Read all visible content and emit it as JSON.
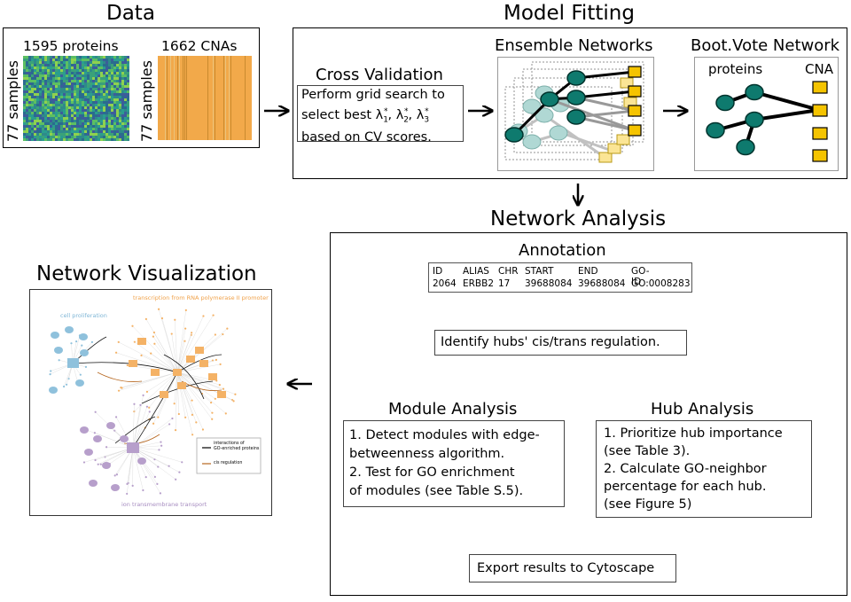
{
  "data_section": {
    "title": "Data",
    "proteins_label": "1595 proteins",
    "cnas_label": "1662 CNAs",
    "samples_label_1": "77 samples",
    "samples_label_2": "77 samples"
  },
  "model_fitting": {
    "title": "Model Fitting",
    "cv_title": "Cross Validation",
    "cv_line1": "Perform grid search to",
    "cv_line2_prefix": "select best λ",
    "cv_line3": "based on CV scores.",
    "ensemble_title": "Ensemble Networks",
    "bootvote_title": "Boot.Vote Network",
    "proteins_label": "proteins",
    "cna_label": "CNA"
  },
  "network_analysis": {
    "title": "Network Analysis",
    "annotation_title": "Annotation",
    "table_headers": [
      "ID",
      "ALIAS",
      "CHR",
      "START",
      "END",
      "GO-ID"
    ],
    "table_row": [
      "2064",
      "ERBB2",
      "17",
      "39688084",
      "39688084",
      "GO:0008283"
    ],
    "identify_text": "Identify hubs' cis/trans regulation.",
    "module_title": "Module Analysis",
    "module_lines": [
      "1. Detect modules with edge-",
      "betweenness algorithm.",
      "2. Test for GO enrichment",
      "of modules (see Table S.5)."
    ],
    "hub_title": "Hub Analysis",
    "hub_lines": [
      "1. Prioritize hub importance",
      "(see Table 3).",
      "2. Calculate GO-neighbor",
      "percentage for each hub.",
      "(see Figure 5)"
    ],
    "export_text": "Export results to Cytoscape"
  },
  "visualization": {
    "title": "Network Visualization",
    "cell_proliferation": "cell proliferation",
    "transcription": "transcription from RNA polymerase II promoter",
    "ion_transport": "ion transmembrane transport",
    "legend_interactions_1": "interactions of",
    "legend_interactions_2": "GO-enriched proteins",
    "legend_cis": "cis regulation"
  },
  "colors": {
    "node_teal": "#0e7a6e",
    "cna_yellow": "#f5c400",
    "heat_orange": "#f2a94a",
    "viz_blue": "#8fc1dc",
    "viz_orange": "#f4b266",
    "viz_purple": "#b79fcb"
  }
}
